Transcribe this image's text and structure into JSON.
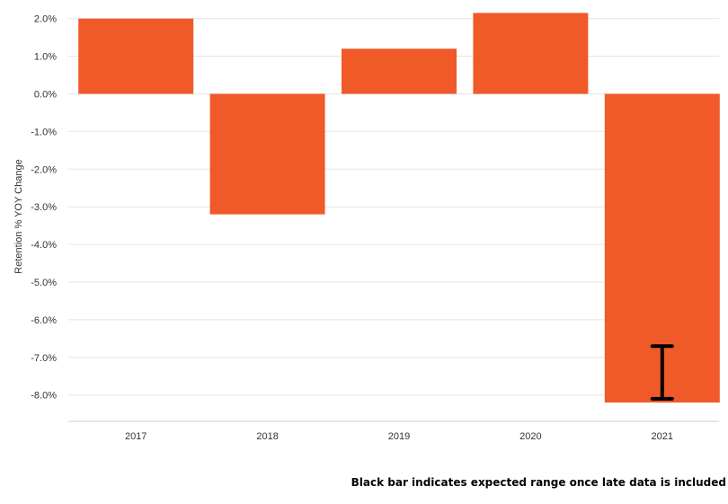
{
  "chart_data": {
    "type": "bar",
    "categories": [
      "2017",
      "2018",
      "2019",
      "2020",
      "2021"
    ],
    "values": [
      2.0,
      -3.2,
      1.2,
      2.15,
      -8.2
    ],
    "ylabel": "Retention % YOY Change",
    "xlabel": "",
    "ylim": [
      -8.5,
      2.2
    ],
    "yticks": [
      2,
      1,
      0,
      -1,
      -2,
      -3,
      -4,
      -5,
      -6,
      -7,
      -8
    ],
    "ytick_labels": [
      "2.0%",
      "1.0%",
      "0.0%",
      "-1.0%",
      "-2.0%",
      "-3.0%",
      "-4.0%",
      "-5.0%",
      "-6.0%",
      "-7.0%",
      "-8.0%"
    ],
    "error_range": {
      "category": "2021",
      "low": -8.1,
      "high": -6.7
    },
    "grid": true,
    "bar_color": "#f05a28",
    "errorbar_color": "#000000"
  },
  "footnote": "Black bar indicates expected range once late data is included"
}
